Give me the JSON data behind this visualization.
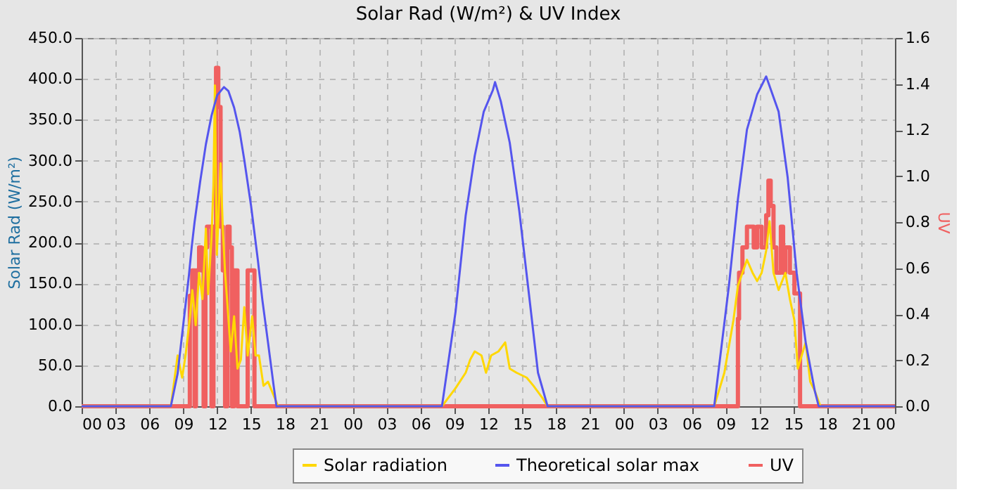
{
  "chart_data": {
    "type": "line",
    "title": "Solar Rad (W/m²) &  UV Index",
    "ylabel": "Solar Rad (W/m²)",
    "y2label": "UV",
    "xlim": [
      0,
      72
    ],
    "xticks": [
      {
        "value": 0,
        "label": "00"
      },
      {
        "value": 3,
        "label": "03"
      },
      {
        "value": 6,
        "label": "06"
      },
      {
        "value": 9,
        "label": "09"
      },
      {
        "value": 12,
        "label": "12"
      },
      {
        "value": 15,
        "label": "15"
      },
      {
        "value": 18,
        "label": "18"
      },
      {
        "value": 21,
        "label": "21"
      },
      {
        "value": 24,
        "label": "00"
      },
      {
        "value": 27,
        "label": "03"
      },
      {
        "value": 30,
        "label": "06"
      },
      {
        "value": 33,
        "label": "09"
      },
      {
        "value": 36,
        "label": "12"
      },
      {
        "value": 39,
        "label": "15"
      },
      {
        "value": 42,
        "label": "18"
      },
      {
        "value": 45,
        "label": "21"
      },
      {
        "value": 48,
        "label": "00"
      },
      {
        "value": 51,
        "label": "03"
      },
      {
        "value": 54,
        "label": "06"
      },
      {
        "value": 57,
        "label": "09"
      },
      {
        "value": 60,
        "label": "12"
      },
      {
        "value": 63,
        "label": "15"
      },
      {
        "value": 66,
        "label": "18"
      },
      {
        "value": 69,
        "label": "21"
      },
      {
        "value": 72,
        "label": "00"
      }
    ],
    "ylim": [
      0,
      450
    ],
    "yticks": [
      {
        "value": 0,
        "label": "0.0"
      },
      {
        "value": 50,
        "label": "50.0"
      },
      {
        "value": 100,
        "label": "100.0"
      },
      {
        "value": 150,
        "label": "150.0"
      },
      {
        "value": 200,
        "label": "200.0"
      },
      {
        "value": 250,
        "label": "250.0"
      },
      {
        "value": 300,
        "label": "300.0"
      },
      {
        "value": 350,
        "label": "350.0"
      },
      {
        "value": 400,
        "label": "400.0"
      },
      {
        "value": 450,
        "label": "450.0"
      }
    ],
    "y2lim": [
      0,
      1.6
    ],
    "y2ticks": [
      {
        "value": 0,
        "label": "0.0"
      },
      0.2,
      0.4,
      0.6,
      0.8,
      {
        "value": 1,
        "label": "1.0"
      },
      1.2,
      1.4,
      1.6
    ],
    "grid": true,
    "legend": "bottom",
    "series": [
      {
        "name": "Solar radiation",
        "color": "#ffd700",
        "x": [
          0,
          7.9,
          8.5,
          8.9,
          9.2,
          9.6,
          9.8,
          10.1,
          10.4,
          10.7,
          11.0,
          11.2,
          11.5,
          11.67,
          11.8,
          11.97,
          12.1,
          12.3,
          12.5,
          12.7,
          12.9,
          13.2,
          13.5,
          13.8,
          14.1,
          14.4,
          14.7,
          15.1,
          15.4,
          15.7,
          16.1,
          16.5,
          17.1,
          17.4,
          31.9,
          33.1,
          34.0,
          34.4,
          34.8,
          35.4,
          35.8,
          36.25,
          36.9,
          37.5,
          37.9,
          38.5,
          39.4,
          40.0,
          40.8,
          41.25,
          56.0,
          56.9,
          57.7,
          58.1,
          58.5,
          58.9,
          59.4,
          59.8,
          60.2,
          60.6,
          60.9,
          61.25,
          61.7,
          62.3,
          62.7,
          63.1,
          63.4,
          64.1,
          64.5,
          64.9,
          65.4,
          72
        ],
        "values": [
          0,
          0,
          62,
          35,
          62,
          110,
          142,
          99,
          163,
          131,
          217,
          137,
          206,
          270,
          392,
          185,
          226,
          297,
          217,
          163,
          126,
          67,
          110,
          46,
          57,
          121,
          62,
          110,
          62,
          62,
          25,
          30,
          10,
          0,
          0,
          22,
          41,
          57,
          67,
          62,
          41,
          62,
          67,
          78,
          46,
          41,
          35,
          25,
          10,
          0,
          0,
          41,
          105,
          147,
          163,
          179,
          163,
          153,
          163,
          190,
          226,
          163,
          142,
          163,
          131,
          105,
          46,
          78,
          30,
          19,
          0,
          0
        ]
      },
      {
        "name": "Theoretical solar max",
        "color": "#5555ee",
        "x": [
          0,
          7.9,
          8.5,
          9.0,
          9.5,
          9.75,
          10.0,
          10.5,
          11.0,
          11.5,
          12.0,
          12.6,
          13.0,
          13.5,
          14.0,
          14.4,
          15.0,
          15.6,
          16.0,
          16.5,
          17.0,
          17.25,
          31.9,
          33.1,
          34.0,
          34.8,
          35.6,
          36.4,
          36.6,
          37.1,
          37.9,
          38.75,
          39.6,
          40.4,
          41.25,
          56.0,
          57.3,
          58.1,
          58.9,
          59.8,
          60.6,
          61.7,
          62.5,
          63.3,
          64.1,
          64.9,
          65.25,
          72
        ],
        "values": [
          0,
          0,
          40,
          100,
          160,
          195,
          225,
          275,
          320,
          355,
          380,
          390,
          385,
          365,
          335,
          301,
          245,
          179,
          130,
          78,
          25,
          0,
          0,
          115,
          233,
          306,
          360,
          386,
          396,
          373,
          322,
          238,
          137,
          41,
          0,
          0,
          147,
          253,
          338,
          381,
          403,
          360,
          280,
          163,
          78,
          19,
          0,
          0
        ]
      },
      {
        "name": "UV",
        "color": "#f06060",
        "type": "step",
        "axis": "y2",
        "x": [
          0,
          9.58,
          9.79,
          10.0,
          10.12,
          10.4,
          10.6,
          10.8,
          10.96,
          11.1,
          11.5,
          11.67,
          11.9,
          12.1,
          12.3,
          12.5,
          12.7,
          12.9,
          13.1,
          13.3,
          13.5,
          13.8,
          14.7,
          15.3,
          58.1,
          58.2,
          58.5,
          58.9,
          59.4,
          59.5,
          59.8,
          60.2,
          60.6,
          60.8,
          61.0,
          61.25,
          61.5,
          61.9,
          62.1,
          62.3,
          62.7,
          63.1,
          63.6,
          72
        ],
        "values": [
          0,
          0.48,
          0.59,
          0,
          0.59,
          0.69,
          0.59,
          0,
          0.69,
          0.78,
          0,
          0.78,
          1.47,
          1.3,
          0.78,
          0.59,
          0,
          0.78,
          0.69,
          0,
          0.59,
          0,
          0.59,
          0,
          0.38,
          0.58,
          0.69,
          0.78,
          0.78,
          0.69,
          0.78,
          0.69,
          0.83,
          0.98,
          0.87,
          0.69,
          0.58,
          0.78,
          0.58,
          0.69,
          0.58,
          0.49,
          0,
          0
        ]
      }
    ]
  }
}
